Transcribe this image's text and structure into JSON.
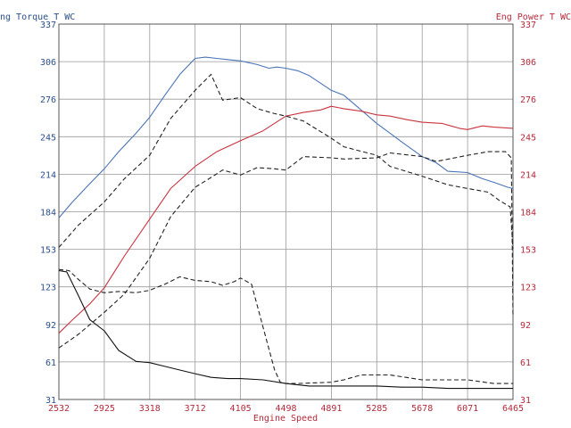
{
  "chart_data": {
    "type": "line",
    "xlabel": "Engine Speed",
    "ylabel_left": "ng Torque T WC",
    "ylabel_right": "Eng Power T WC",
    "xlim": [
      2532,
      6465
    ],
    "ylim_left": [
      31,
      337
    ],
    "ylim_right": [
      31,
      337
    ],
    "x_ticks": [
      "2532",
      "2925",
      "3318",
      "3712",
      "4105",
      "4498",
      "4891",
      "5285",
      "5678",
      "6071",
      "6465"
    ],
    "y_ticks_left": [
      "337",
      "306",
      "276",
      "245",
      "214",
      "184",
      "153",
      "123",
      "92",
      "61",
      "31"
    ],
    "y_ticks_right": [
      "337",
      "306",
      "276",
      "245",
      "214",
      "184",
      "153",
      "123",
      "92",
      "61",
      "31"
    ],
    "grid": true,
    "colors": {
      "torque": "#4a74b8",
      "power": "#c8343f",
      "dashed": "#222222",
      "black": "#111111",
      "grid": "#9a9a9a"
    },
    "series": [
      {
        "key": "torque-solid",
        "axis": "left",
        "color": "#4a74b8",
        "dash": false,
        "x": [
          2532,
          2640,
          2780,
          2925,
          3050,
          3200,
          3318,
          3450,
          3580,
          3712,
          3800,
          3900,
          4000,
          4105,
          4250,
          4350,
          4420,
          4498,
          4600,
          4700,
          4891,
          5000,
          5100,
          5285,
          5400,
          5500,
          5678,
          5800,
          5900,
          6071,
          6200,
          6300,
          6420,
          6465
        ],
        "y": [
          179,
          191,
          205,
          219,
          233,
          248,
          261,
          279,
          296,
          309,
          310,
          309,
          308,
          307,
          304,
          301,
          302,
          301,
          299,
          295,
          283,
          279,
          271,
          256,
          248,
          241,
          229,
          224,
          217,
          216,
          211,
          208,
          204,
          203
        ]
      },
      {
        "key": "power-solid",
        "axis": "right",
        "color": "#c8343f",
        "dash": false,
        "x": [
          2532,
          2650,
          2800,
          2925,
          3100,
          3318,
          3500,
          3712,
          3900,
          4105,
          4300,
          4498,
          4650,
          4800,
          4891,
          5000,
          5150,
          5285,
          5400,
          5550,
          5678,
          5850,
          6000,
          6071,
          6200,
          6300,
          6465
        ],
        "y": [
          85,
          96,
          109,
          122,
          148,
          178,
          203,
          221,
          233,
          242,
          250,
          262,
          265,
          267,
          270,
          268,
          266,
          263,
          262,
          259,
          257,
          256,
          252,
          251,
          254,
          253,
          252
        ]
      },
      {
        "key": "torque-dashed",
        "axis": "left",
        "color": "#222222",
        "dash": true,
        "x": [
          2532,
          2700,
          2925,
          3100,
          3318,
          3500,
          3712,
          3850,
          3950,
          4105,
          4250,
          4400,
          4498,
          4650,
          4891,
          5000,
          5285,
          5400,
          5678,
          5900,
          6071,
          6250,
          6350,
          6440,
          6465
        ],
        "y": [
          155,
          173,
          192,
          211,
          230,
          260,
          283,
          296,
          275,
          277,
          268,
          264,
          262,
          258,
          244,
          237,
          230,
          221,
          213,
          206,
          203,
          200,
          193,
          188,
          154
        ]
      },
      {
        "key": "power-dashed",
        "axis": "right",
        "color": "#222222",
        "dash": true,
        "x": [
          2532,
          2700,
          2925,
          3100,
          3318,
          3500,
          3712,
          3850,
          3950,
          4105,
          4250,
          4400,
          4498,
          4650,
          4891,
          5000,
          5285,
          5400,
          5678,
          5800,
          6071,
          6250,
          6400,
          6450,
          6465
        ],
        "y": [
          73,
          84,
          102,
          117,
          146,
          180,
          204,
          212,
          218,
          214,
          220,
          219,
          218,
          229,
          228,
          227,
          228,
          232,
          229,
          225,
          230,
          233,
          233,
          228,
          100
        ]
      },
      {
        "key": "torque-black-dashed",
        "axis": "left",
        "color": "#222222",
        "dash": true,
        "x": [
          2532,
          2620,
          2700,
          2800,
          2925,
          3050,
          3200,
          3318,
          3450,
          3580,
          3712,
          3850,
          3950,
          4050,
          4105,
          4200,
          4300,
          4400,
          4450,
          4498,
          4600,
          4891,
          5000,
          5150,
          5285,
          5400,
          5678,
          6071,
          6300,
          6465
        ],
        "y": [
          137,
          136,
          129,
          121,
          118,
          119,
          118,
          120,
          125,
          131,
          128,
          127,
          124,
          127,
          130,
          125,
          90,
          55,
          45,
          44,
          44,
          45,
          47,
          51,
          51,
          51,
          47,
          47,
          44,
          44
        ]
      },
      {
        "key": "power-black-solid",
        "axis": "right",
        "color": "#111111",
        "dash": false,
        "x": [
          2532,
          2600,
          2700,
          2800,
          2925,
          3050,
          3200,
          3318,
          3450,
          3580,
          3712,
          3850,
          4000,
          4105,
          4300,
          4498,
          4700,
          4891,
          5100,
          5285,
          5500,
          5678,
          5900,
          6071,
          6250,
          6465
        ],
        "y": [
          136,
          135,
          116,
          96,
          87,
          71,
          62,
          61,
          58,
          55,
          52,
          49,
          48,
          48,
          47,
          44,
          42,
          42,
          42,
          42,
          41,
          41,
          40,
          40,
          40,
          40
        ]
      }
    ]
  }
}
